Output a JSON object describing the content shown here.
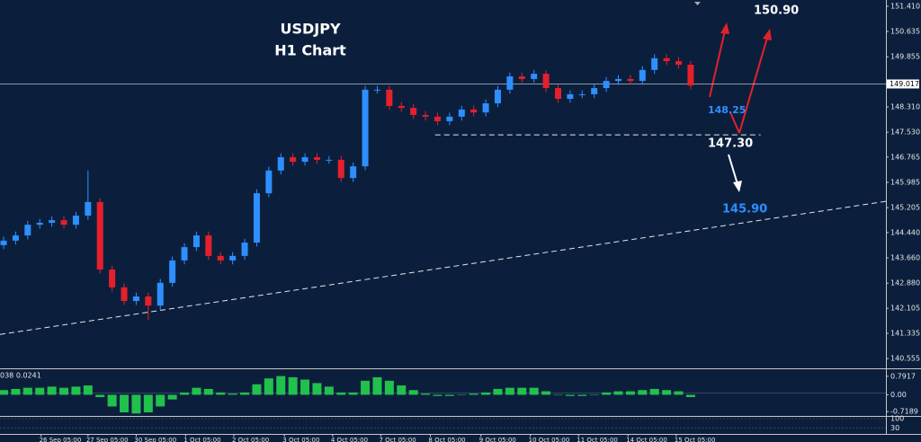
{
  "chart_data": {
    "type": "candlestick",
    "title": "USDJPY",
    "subtitle": "H1 Chart",
    "colors": {
      "up": "#2e8fff",
      "down": "#e5202b",
      "background": "#0b1f3d"
    },
    "xlim": [
      -0.3,
      73.2
    ],
    "xticks": [
      {
        "value": 3.1,
        "label": "26 Sep 05:00"
      },
      {
        "value": 7.0,
        "label": "27 Sep 05:00"
      },
      {
        "value": 11.0,
        "label": "30 Sep 05:00"
      },
      {
        "value": 15.1,
        "label": "1 Oct 05:00"
      },
      {
        "value": 19.1,
        "label": "2 Oct 05:00"
      },
      {
        "value": 23.3,
        "label": "3 Oct 05:00"
      },
      {
        "value": 27.3,
        "label": "4 Oct 05:00"
      },
      {
        "value": 31.3,
        "label": "7 Oct 05:00"
      },
      {
        "value": 35.4,
        "label": "8 Oct 05:00"
      },
      {
        "value": 39.6,
        "label": "9 Oct 05:00"
      },
      {
        "value": 43.7,
        "label": "10 Oct 05:00"
      },
      {
        "value": 47.7,
        "label": "11 Oct 05:00"
      },
      {
        "value": 51.8,
        "label": "14 Oct 05:00"
      },
      {
        "value": 55.8,
        "label": "15 Oct 05:00"
      }
    ],
    "ylim": [
      140.256,
      151.604
    ],
    "yticks": [
      {
        "value": 151.41,
        "label": "151.410"
      },
      150.635,
      149.855,
      {
        "value": 148.31,
        "label": "148.310"
      },
      {
        "value": 147.53,
        "label": "147.530"
      },
      146.765,
      145.985,
      145.205,
      {
        "value": 144.44,
        "label": "144.440"
      },
      {
        "value": 143.66,
        "label": "143.660"
      },
      {
        "value": 142.88,
        "label": "142.880"
      },
      142.105,
      141.335,
      140.555
    ],
    "last_price": 149.017,
    "open": [
      144.05,
      144.19,
      144.35,
      144.68,
      144.74,
      144.82,
      144.68,
      144.96,
      145.38,
      143.3,
      142.75,
      142.33,
      142.47,
      142.19,
      142.89,
      143.58,
      143.99,
      144.35,
      143.72,
      143.58,
      143.72,
      144.13,
      145.65,
      146.35,
      146.76,
      146.62,
      146.76,
      146.68,
      146.68,
      146.12,
      146.48,
      148.84,
      148.84,
      148.34,
      148.28,
      148.06,
      148.01,
      147.87,
      148.01,
      148.23,
      148.14,
      148.42,
      148.84,
      149.25,
      149.17,
      149.33,
      148.89,
      148.56,
      148.7,
      148.7,
      148.89,
      149.11,
      149.17,
      149.11,
      149.45,
      149.81,
      149.72,
      149.61
    ],
    "high": [
      144.31,
      144.47,
      144.8,
      144.86,
      144.94,
      144.94,
      145.08,
      146.35,
      145.5,
      143.42,
      142.87,
      142.59,
      142.59,
      143.01,
      143.7,
      144.11,
      144.47,
      144.47,
      143.84,
      143.84,
      144.25,
      145.77,
      146.47,
      146.88,
      146.88,
      146.88,
      146.88,
      146.8,
      146.8,
      146.6,
      148.96,
      148.96,
      148.96,
      148.46,
      148.4,
      148.18,
      148.13,
      148.13,
      148.35,
      148.35,
      148.54,
      148.96,
      149.37,
      149.37,
      149.45,
      149.45,
      149.01,
      148.82,
      148.82,
      149.01,
      149.23,
      149.29,
      149.29,
      149.57,
      149.93,
      149.93,
      149.84,
      149.73
    ],
    "low": [
      143.93,
      144.07,
      144.23,
      144.56,
      144.62,
      144.56,
      144.56,
      144.84,
      143.18,
      142.63,
      142.21,
      142.21,
      141.75,
      142.07,
      142.77,
      143.46,
      143.87,
      143.6,
      143.46,
      143.46,
      143.6,
      144.01,
      145.53,
      146.23,
      146.5,
      146.5,
      146.56,
      146.56,
      146.0,
      146.0,
      146.36,
      148.72,
      148.22,
      148.16,
      147.94,
      147.89,
      147.75,
      147.75,
      147.89,
      148.02,
      148.02,
      148.3,
      148.72,
      149.05,
      149.05,
      148.77,
      148.44,
      148.44,
      148.58,
      148.58,
      148.77,
      148.99,
      148.99,
      148.99,
      149.33,
      149.6,
      149.49,
      148.85
    ],
    "close": [
      144.19,
      144.35,
      144.68,
      144.74,
      144.82,
      144.68,
      144.96,
      145.38,
      143.3,
      142.75,
      142.33,
      142.47,
      142.19,
      142.89,
      143.58,
      143.99,
      144.35,
      143.72,
      143.58,
      143.72,
      144.13,
      145.65,
      146.35,
      146.76,
      146.62,
      146.76,
      146.68,
      146.68,
      146.12,
      146.48,
      148.84,
      148.84,
      148.34,
      148.28,
      148.06,
      148.01,
      147.87,
      148.01,
      148.23,
      148.14,
      148.42,
      148.84,
      149.25,
      149.17,
      149.33,
      148.89,
      148.56,
      148.7,
      148.7,
      148.89,
      149.11,
      149.17,
      149.11,
      149.45,
      149.81,
      149.72,
      149.61,
      148.97
    ],
    "trendlines": [
      {
        "x": [
          -0.3,
          73.2
        ],
        "y": [
          141.3,
          145.4
        ]
      },
      {
        "x": [
          35.8,
          62.8
        ],
        "y": [
          147.45,
          147.45
        ]
      }
    ],
    "annotations": [
      {
        "text": "150.90",
        "color": "#ffffff"
      },
      {
        "text": "148.25",
        "color": "#2e8fff"
      },
      {
        "text": "147.30",
        "color": "#ffffff"
      },
      {
        "text": "145.90",
        "color": "#2e8fff"
      }
    ],
    "macd": {
      "label": "038 0.0241",
      "color": "#22c04c",
      "ylim": [
        -0.905,
        1.093
      ],
      "yticks": [
        0.7917,
        {
          "value": 0,
          "label": "0.00"
        },
        -0.7189
      ],
      "values": [
        0.2,
        0.25,
        0.3,
        0.3,
        0.35,
        0.3,
        0.35,
        0.4,
        -0.1,
        -0.5,
        -0.75,
        -0.8,
        -0.75,
        -0.5,
        -0.2,
        0.1,
        0.3,
        0.25,
        0.1,
        0.05,
        0.1,
        0.45,
        0.7,
        0.8,
        0.75,
        0.65,
        0.5,
        0.35,
        0.1,
        0.1,
        0.6,
        0.75,
        0.6,
        0.4,
        0.2,
        0.05,
        -0.05,
        -0.05,
        0,
        0.05,
        0.1,
        0.25,
        0.3,
        0.3,
        0.3,
        0.15,
        0,
        -0.05,
        -0.05,
        0,
        0.1,
        0.15,
        0.15,
        0.2,
        0.25,
        0.2,
        0.15,
        -0.1
      ]
    },
    "oscillator": {
      "ylim": [
        0,
        100
      ],
      "yticks": [
        100,
        30
      ]
    }
  }
}
